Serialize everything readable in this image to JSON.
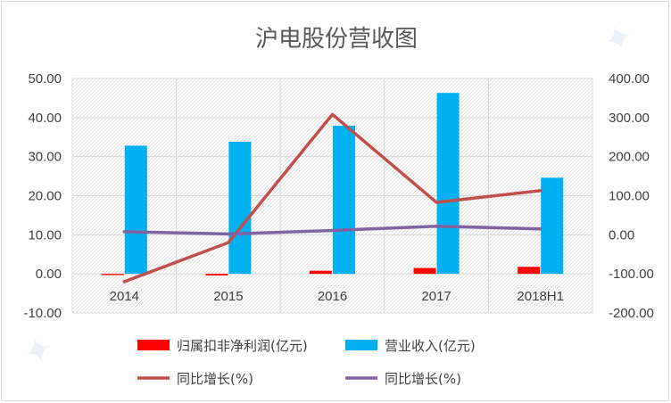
{
  "chart_data": {
    "type": "bar",
    "title": "沪电股份营收图",
    "categories": [
      "2014",
      "2015",
      "2016",
      "2017",
      "2018H1"
    ],
    "y_left": {
      "min": -10,
      "max": 50,
      "step": 10,
      "tick_labels": [
        "-10.00",
        "0.00",
        "10.00",
        "20.00",
        "30.00",
        "40.00",
        "50.00"
      ]
    },
    "y_right": {
      "min": -200,
      "max": 400,
      "step": 100,
      "tick_labels": [
        "-200.00",
        "-100.00",
        "0.00",
        "100.00",
        "200.00",
        "300.00",
        "400.00"
      ]
    },
    "series": [
      {
        "name": "归属扣非净利润(亿元)",
        "kind": "bar",
        "axis": "left",
        "color": "#ff0000",
        "values": [
          -0.3,
          -0.4,
          0.8,
          1.5,
          1.8
        ]
      },
      {
        "name": "营业收入(亿元)",
        "kind": "bar",
        "axis": "left",
        "color": "#00b0f0",
        "values": [
          32.8,
          33.8,
          37.9,
          46.3,
          24.6
        ]
      },
      {
        "name": "同比增长(%)",
        "kind": "line",
        "axis": "right",
        "color": "#c0504d",
        "values": [
          -120,
          -20,
          308,
          83,
          113
        ]
      },
      {
        "name": "同比增长(%)",
        "kind": "line",
        "axis": "right",
        "color": "#8064a2",
        "values": [
          8,
          2,
          11,
          22,
          15
        ]
      }
    ],
    "legend": "bottom",
    "grid": true
  }
}
